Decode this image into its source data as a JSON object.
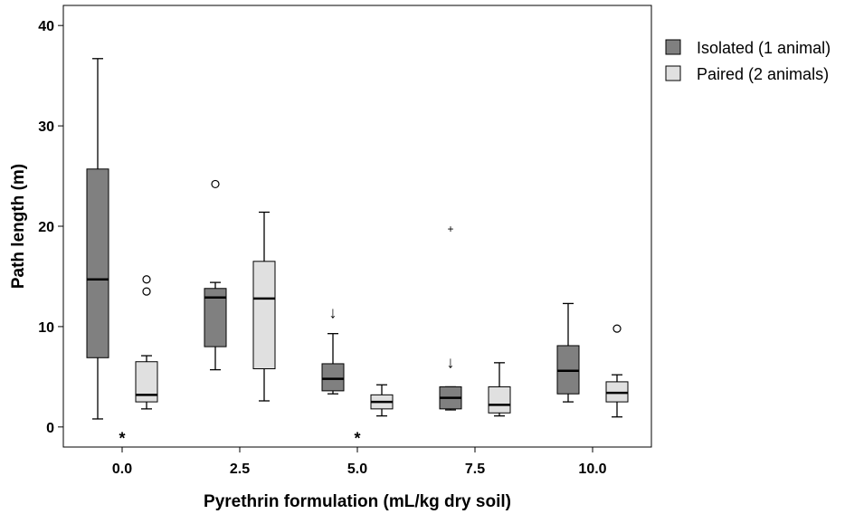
{
  "chart_data": {
    "type": "box",
    "title": "",
    "xlabel": "Pyrethrin formulation (mL/kg dry soil)",
    "ylabel": "Path length (m)",
    "categories": [
      "0.0",
      "2.5",
      "5.0",
      "7.5",
      "10.0"
    ],
    "ylim": [
      -2,
      42
    ],
    "yticks": [
      0,
      10,
      20,
      30,
      40
    ],
    "grid": false,
    "legend_position": "right",
    "series": [
      {
        "name": "Isolated (1 animal)",
        "color": "#808080",
        "boxes": [
          {
            "category": "0.0",
            "min": 0.8,
            "q1": 6.9,
            "median": 14.7,
            "q3": 25.7,
            "max": 36.7,
            "outliers": []
          },
          {
            "category": "2.5",
            "min": 5.7,
            "q1": 8.0,
            "median": 12.9,
            "q3": 13.8,
            "max": 14.4,
            "outliers": [
              24.2
            ]
          },
          {
            "category": "5.0",
            "min": 3.3,
            "q1": 3.6,
            "median": 4.8,
            "q3": 6.3,
            "max": 9.3,
            "outliers": []
          },
          {
            "category": "7.5",
            "min": 1.7,
            "q1": 1.8,
            "median": 2.9,
            "q3": 4.0,
            "max": 4.0,
            "outliers": [],
            "extremes": [
              19.8
            ]
          },
          {
            "category": "10.0",
            "min": 2.5,
            "q1": 3.3,
            "median": 5.6,
            "q3": 8.1,
            "max": 12.3,
            "outliers": []
          }
        ]
      },
      {
        "name": "Paired (2 animals)",
        "color": "#e0e0e0",
        "boxes": [
          {
            "category": "0.0",
            "min": 1.8,
            "q1": 2.5,
            "median": 3.2,
            "q3": 6.5,
            "max": 7.1,
            "outliers": [
              13.5,
              14.7
            ]
          },
          {
            "category": "2.5",
            "min": 2.6,
            "q1": 5.8,
            "median": 12.8,
            "q3": 16.5,
            "max": 21.4,
            "outliers": []
          },
          {
            "category": "5.0",
            "min": 1.1,
            "q1": 1.8,
            "median": 2.5,
            "q3": 3.2,
            "max": 4.2,
            "outliers": []
          },
          {
            "category": "7.5",
            "min": 1.1,
            "q1": 1.4,
            "median": 2.2,
            "q3": 4.0,
            "max": 6.4,
            "outliers": []
          },
          {
            "category": "10.0",
            "min": 1.0,
            "q1": 2.5,
            "median": 3.4,
            "q3": 4.5,
            "max": 5.2,
            "outliers": [
              9.8
            ]
          }
        ]
      }
    ],
    "annotations": [
      {
        "type": "asterisk",
        "text": "*",
        "category": "0.0",
        "y": -0.7
      },
      {
        "type": "asterisk",
        "text": "*",
        "category": "5.0",
        "y": -0.7
      },
      {
        "type": "arrow",
        "text": "↓",
        "series": "Isolated (1 animal)",
        "category": "5.0",
        "y": 11.5
      },
      {
        "type": "arrow",
        "text": "↓",
        "series": "Isolated (1 animal)",
        "category": "7.5",
        "y": 6.5
      }
    ]
  }
}
